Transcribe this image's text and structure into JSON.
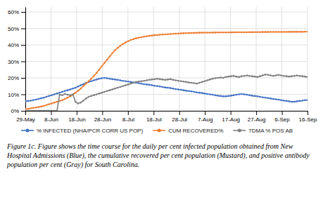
{
  "chart_data": {
    "type": "line",
    "caption": "Figure 1c. Figure shows the time course for the daily per cent infected population obtained from New Hospital Admissions (Blue), the cumulative recovered per cent population (Mustard), and positive antibody population per cent (Gray) for South Carolina.",
    "x": [
      0,
      0.1028,
      0.2056,
      0.3084,
      0.4112,
      0.514,
      0.6168,
      0.7196,
      0.8224,
      0.9252,
      1.028,
      1.1308,
      1.2336,
      1.3364,
      1.4393,
      1.5421,
      1.6449,
      1.7477,
      1.8505,
      1.9533,
      2.0561,
      2.1589,
      2.2617,
      2.3645,
      2.4673,
      2.5701,
      2.6729,
      2.7757,
      2.8785,
      2.9813,
      3.0841,
      3.1869,
      3.2897,
      3.3925,
      3.4953,
      3.5981,
      3.7009,
      3.8037,
      3.9065,
      4.0093,
      4.1121,
      4.215,
      4.3178,
      4.4206,
      4.5234,
      4.6262,
      4.729,
      4.8318,
      4.9346,
      5.0374,
      5.1402,
      5.243,
      5.3458,
      5.4486,
      5.5514,
      5.6542,
      5.757,
      5.8598,
      5.9626,
      6.0654,
      6.1682,
      6.271,
      6.3738,
      6.4766,
      6.5794,
      6.6822,
      6.785,
      6.8879,
      6.9907,
      7.0935,
      7.1963,
      7.2991,
      7.4019,
      7.5047,
      7.6075,
      7.7103,
      7.8131,
      7.9159,
      8.0187,
      8.1215,
      8.2243,
      8.3271,
      8.4299,
      8.5327,
      8.6355,
      8.7383,
      8.8411,
      8.9439,
      9.0467,
      9.1495,
      9.2523,
      9.3551,
      9.4579,
      9.5607,
      9.6636,
      9.7664,
      9.8692,
      9.972,
      10.0748,
      10.1776,
      10.2804,
      10.3832,
      10.486,
      10.5888,
      10.6916,
      10.7944,
      10.8972,
      11
    ],
    "xlim": [
      0,
      11
    ],
    "xticks": [
      {
        "value": 0,
        "label": "29-May"
      },
      {
        "value": 1,
        "label": "8-Jun"
      },
      {
        "value": 2,
        "label": "18-Jun"
      },
      {
        "value": 3,
        "label": "28-Jun"
      },
      {
        "value": 4,
        "label": "8-Jul"
      },
      {
        "value": 5,
        "label": "18-Jul"
      },
      {
        "value": 6,
        "label": "28-Jul"
      },
      {
        "value": 7,
        "label": "7-Aug"
      },
      {
        "value": 8,
        "label": "17-Aug"
      },
      {
        "value": 9,
        "label": "27-Aug"
      },
      {
        "value": 10,
        "label": "6-Sep"
      },
      {
        "value": 11,
        "label": "16-Sep"
      }
    ],
    "ylim": [
      0,
      63
    ],
    "yticks": [
      {
        "value": 0,
        "label": "0%"
      },
      {
        "value": 10,
        "label": "10%"
      },
      {
        "value": 20,
        "label": "20%"
      },
      {
        "value": 30,
        "label": "30%"
      },
      {
        "value": 40,
        "label": "40%"
      },
      {
        "value": 50,
        "label": "50%"
      },
      {
        "value": 60,
        "label": "60%"
      }
    ],
    "grid": true,
    "legend": "bottom",
    "marker": "circle",
    "series": [
      {
        "name": "% INFECTED (NHA/PCR CORR US POP)",
        "color": "#4472C4",
        "values": [
          5.8,
          6.0,
          6.2,
          6.5,
          6.8,
          7.2,
          7.6,
          8.0,
          8.5,
          9.0,
          9.5,
          10.0,
          10.5,
          11.0,
          11.5,
          12.0,
          12.5,
          13.0,
          13.5,
          14.0,
          14.8,
          15.5,
          16.2,
          17.0,
          17.5,
          18.0,
          18.5,
          19.0,
          19.5,
          19.8,
          20.0,
          19.8,
          19.5,
          19.2,
          19.0,
          18.8,
          18.5,
          18.2,
          18.0,
          17.8,
          17.5,
          17.2,
          17.0,
          16.8,
          16.5,
          16.2,
          16.0,
          15.8,
          15.5,
          15.2,
          15.0,
          14.8,
          14.5,
          14.2,
          14.0,
          13.8,
          13.5,
          13.2,
          13.0,
          12.8,
          12.5,
          12.2,
          12.0,
          11.8,
          11.5,
          11.2,
          11.0,
          10.8,
          10.5,
          10.2,
          10.0,
          9.8,
          9.5,
          9.2,
          9.0,
          8.8,
          8.8,
          9.0,
          9.2,
          9.5,
          9.8,
          10.0,
          10.2,
          10.0,
          9.8,
          9.5,
          9.2,
          9.0,
          8.8,
          8.5,
          8.2,
          8.0,
          7.8,
          7.5,
          7.2,
          7.0,
          6.8,
          6.5,
          6.2,
          6.0,
          5.8,
          5.5,
          5.5,
          5.8,
          6.0,
          6.2,
          6.5,
          6.5
        ]
      },
      {
        "name": "CUM RECOVERED%",
        "color": "#ED7D31",
        "values": [
          1.0,
          1.2,
          1.5,
          1.8,
          2.0,
          2.3,
          2.6,
          3.0,
          3.5,
          4.0,
          4.5,
          5.0,
          5.5,
          6.0,
          6.5,
          7.2,
          8.0,
          8.8,
          9.8,
          11.0,
          12.2,
          13.5,
          15.0,
          16.5,
          18.0,
          19.5,
          21.2,
          23.0,
          25.0,
          27.0,
          29.0,
          31.0,
          33.0,
          35.0,
          36.8,
          38.2,
          39.5,
          40.5,
          41.5,
          42.3,
          43.0,
          43.5,
          44.0,
          44.4,
          44.7,
          45.0,
          45.2,
          45.5,
          45.7,
          45.9,
          46.0,
          46.2,
          46.3,
          46.4,
          46.5,
          46.6,
          46.7,
          46.8,
          46.9,
          47.0,
          47.1,
          47.15,
          47.2,
          47.25,
          47.3,
          47.35,
          47.4,
          47.42,
          47.44,
          47.46,
          47.48,
          47.5,
          47.52,
          47.54,
          47.56,
          47.57,
          47.58,
          47.6,
          47.62,
          47.64,
          47.65,
          47.66,
          47.67,
          47.68,
          47.7,
          47.72,
          47.74,
          47.76,
          47.78,
          47.8,
          47.82,
          47.84,
          47.85,
          47.86,
          47.87,
          47.88,
          47.89,
          47.9,
          47.91,
          47.92,
          47.93,
          47.94,
          47.95,
          47.95,
          47.95,
          47.96,
          47.97,
          47.97
        ]
      },
      {
        "name": "7DMA % POS AB",
        "color": "#808080",
        "values": [
          0.0,
          0.0,
          0.0,
          0.0,
          0.0,
          0.0,
          0.0,
          0.0,
          0.0,
          0.0,
          0.0,
          0.0,
          0.0,
          9.8,
          9.5,
          10.2,
          9.8,
          9.5,
          10.0,
          5.5,
          4.5,
          5.0,
          6.2,
          7.5,
          8.5,
          9.0,
          9.5,
          10.0,
          10.5,
          11.0,
          11.5,
          12.0,
          12.5,
          13.0,
          13.5,
          14.0,
          14.5,
          15.0,
          15.5,
          16.0,
          16.5,
          17.0,
          17.5,
          17.8,
          18.0,
          18.2,
          18.5,
          18.8,
          19.0,
          19.2,
          19.5,
          19.2,
          19.0,
          18.8,
          19.0,
          19.2,
          18.8,
          18.5,
          18.2,
          18.0,
          17.8,
          17.5,
          17.2,
          17.0,
          16.8,
          16.5,
          17.0,
          17.5,
          18.0,
          18.5,
          19.0,
          19.5,
          19.8,
          20.0,
          20.2,
          20.0,
          20.5,
          20.8,
          21.0,
          21.2,
          20.8,
          20.5,
          21.0,
          21.2,
          21.5,
          21.2,
          21.0,
          20.8,
          20.5,
          21.0,
          21.5,
          22.0,
          21.8,
          21.5,
          21.2,
          21.5,
          21.8,
          21.5,
          21.2,
          21.0,
          20.8,
          21.0,
          21.2,
          21.5,
          21.2,
          21.0,
          20.8,
          20.5
        ]
      }
    ]
  }
}
